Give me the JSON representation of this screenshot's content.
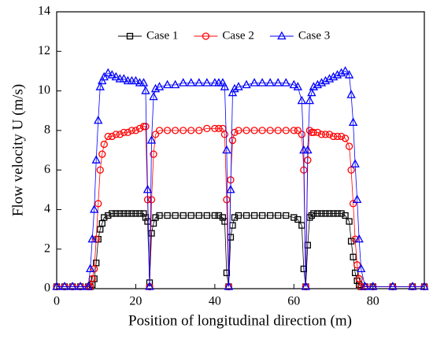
{
  "chart_data": {
    "type": "line",
    "x_label": "Position of longitudinal direction (m)",
    "y_label": "Flow velocity U (m/s)",
    "x": [
      0,
      2,
      4,
      6,
      8,
      8.5,
      9,
      9.5,
      10,
      10.5,
      11,
      11.5,
      12,
      13,
      14,
      15,
      16,
      17,
      18,
      19,
      20,
      21,
      22,
      22.5,
      23,
      23.5,
      24,
      24.5,
      25,
      26,
      28,
      30,
      32,
      34,
      36,
      38,
      40,
      41,
      42,
      42.5,
      43,
      43.5,
      44,
      44.5,
      45,
      46,
      48,
      50,
      52,
      54,
      56,
      58,
      60,
      61,
      62,
      62.5,
      63,
      63.5,
      64,
      64.5,
      65,
      66,
      67,
      68,
      69,
      70,
      71,
      72,
      73,
      74,
      74.5,
      75,
      75.5,
      76,
      76.5,
      77,
      78,
      80,
      85,
      90,
      93
    ],
    "series": [
      {
        "name": "Case 1",
        "color": "#000000",
        "marker": "square",
        "values": [
          0.1,
          0.1,
          0.1,
          0.1,
          0.1,
          0.1,
          0.2,
          0.5,
          1.3,
          2.5,
          3.0,
          3.3,
          3.6,
          3.7,
          3.8,
          3.8,
          3.8,
          3.8,
          3.8,
          3.8,
          3.8,
          3.8,
          3.8,
          3.6,
          3.4,
          0.3,
          2.8,
          3.3,
          3.6,
          3.7,
          3.7,
          3.7,
          3.7,
          3.7,
          3.7,
          3.7,
          3.7,
          3.7,
          3.6,
          3.4,
          0.8,
          0.1,
          2.6,
          3.2,
          3.6,
          3.7,
          3.7,
          3.7,
          3.7,
          3.7,
          3.7,
          3.7,
          3.6,
          3.5,
          3.2,
          1.0,
          0.1,
          2.2,
          3.6,
          3.7,
          3.8,
          3.8,
          3.8,
          3.8,
          3.8,
          3.8,
          3.8,
          3.8,
          3.7,
          3.4,
          2.4,
          1.6,
          0.8,
          0.4,
          0.2,
          0.1,
          0.1,
          0.1,
          0.1,
          0.1,
          0.1
        ]
      },
      {
        "name": "Case 2",
        "color": "#ff0000",
        "marker": "circle",
        "values": [
          0.1,
          0.1,
          0.1,
          0.1,
          0.1,
          0.1,
          0.5,
          1.0,
          2.5,
          4.3,
          6.0,
          6.8,
          7.3,
          7.7,
          7.7,
          7.8,
          7.8,
          7.9,
          7.9,
          8.0,
          8.0,
          8.1,
          8.2,
          8.2,
          4.5,
          0.1,
          4.5,
          6.8,
          7.8,
          8.0,
          8.0,
          8.0,
          8.0,
          8.0,
          8.0,
          8.1,
          8.1,
          8.1,
          8.1,
          7.8,
          4.5,
          0.1,
          5.5,
          7.5,
          7.9,
          8.0,
          8.0,
          8.0,
          8.0,
          8.0,
          8.0,
          8.0,
          8.0,
          8.0,
          7.8,
          6.0,
          0.1,
          6.5,
          8.0,
          7.9,
          7.9,
          7.9,
          7.8,
          7.8,
          7.8,
          7.7,
          7.7,
          7.7,
          7.6,
          7.2,
          6.0,
          4.3,
          2.5,
          1.2,
          0.5,
          0.1,
          0.1,
          0.1,
          0.1,
          0.1,
          0.1
        ]
      },
      {
        "name": "Case 3",
        "color": "#0000ff",
        "marker": "triangle",
        "values": [
          0.1,
          0.1,
          0.1,
          0.1,
          0.1,
          1.0,
          2.5,
          4.0,
          6.5,
          8.5,
          10.2,
          10.5,
          10.7,
          10.9,
          10.8,
          10.7,
          10.6,
          10.6,
          10.5,
          10.5,
          10.5,
          10.4,
          10.4,
          10.0,
          5.0,
          0.1,
          7.5,
          9.7,
          10.1,
          10.2,
          10.3,
          10.3,
          10.4,
          10.4,
          10.4,
          10.4,
          10.4,
          10.4,
          10.4,
          10.2,
          7.0,
          0.1,
          5.0,
          9.9,
          10.1,
          10.2,
          10.3,
          10.4,
          10.4,
          10.4,
          10.4,
          10.4,
          10.3,
          10.2,
          9.5,
          7.0,
          0.1,
          7.0,
          9.5,
          9.9,
          10.2,
          10.3,
          10.4,
          10.5,
          10.6,
          10.7,
          10.8,
          10.9,
          11.0,
          10.8,
          9.8,
          8.4,
          6.3,
          4.5,
          2.5,
          1.0,
          0.1,
          0.1,
          0.1,
          0.1,
          0.1
        ]
      }
    ],
    "xlim": [
      0,
      93
    ],
    "ylim": [
      0,
      14
    ],
    "xticks": [
      0,
      20,
      40,
      60,
      80
    ],
    "yticks": [
      0,
      2,
      4,
      6,
      8,
      10,
      12,
      14
    ],
    "legend": "upper center",
    "grid": false
  }
}
